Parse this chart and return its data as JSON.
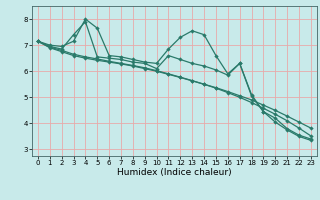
{
  "background_color": "#c8eaea",
  "grid_color": "#e8aaaa",
  "line_color": "#2a7a6a",
  "xlabel": "Humidex (Indice chaleur)",
  "xlim": [
    -0.5,
    23.5
  ],
  "ylim": [
    2.75,
    8.5
  ],
  "yticks": [
    3,
    4,
    5,
    6,
    7,
    8
  ],
  "xticks": [
    0,
    1,
    2,
    3,
    4,
    5,
    6,
    7,
    8,
    9,
    10,
    11,
    12,
    13,
    14,
    15,
    16,
    17,
    18,
    19,
    20,
    21,
    22,
    23
  ],
  "series": [
    [
      7.15,
      7.0,
      6.95,
      7.15,
      8.0,
      7.65,
      6.6,
      6.55,
      6.45,
      6.35,
      6.3,
      6.85,
      7.3,
      7.55,
      7.4,
      6.6,
      5.9,
      6.3,
      5.1,
      4.45,
      4.2,
      3.8,
      3.55,
      3.4
    ],
    [
      7.15,
      6.95,
      6.85,
      7.4,
      7.9,
      6.55,
      6.5,
      6.45,
      6.35,
      6.3,
      6.1,
      6.6,
      6.45,
      6.3,
      6.2,
      6.05,
      5.85,
      6.3,
      5.05,
      4.45,
      4.05,
      3.75,
      3.5,
      3.35
    ],
    [
      7.15,
      6.9,
      6.75,
      6.6,
      6.5,
      6.42,
      6.35,
      6.28,
      6.2,
      6.1,
      6.0,
      5.88,
      5.76,
      5.63,
      5.5,
      5.37,
      5.22,
      5.06,
      4.9,
      4.7,
      4.5,
      4.28,
      4.05,
      3.82
    ],
    [
      7.15,
      6.92,
      6.8,
      6.65,
      6.55,
      6.47,
      6.38,
      6.3,
      6.22,
      6.13,
      6.02,
      5.9,
      5.77,
      5.64,
      5.5,
      5.35,
      5.18,
      5.0,
      4.8,
      4.58,
      4.35,
      4.1,
      3.82,
      3.52
    ]
  ],
  "figsize": [
    3.2,
    2.0
  ],
  "dpi": 100,
  "tick_fontsize": 5.0,
  "xlabel_fontsize": 6.5,
  "linewidth": 0.9,
  "markersize": 2.2
}
